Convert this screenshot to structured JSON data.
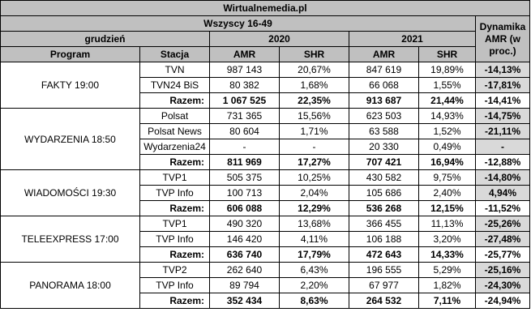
{
  "header": {
    "site": "Wirtualnemedia.pl",
    "group": "Wszyscy 16-49",
    "month": "grudzień",
    "year1": "2020",
    "year2": "2021",
    "dynamics": "Dynamika AMR (w proc.)",
    "col_program": "Program",
    "col_station": "Stacja",
    "col_amr": "AMR",
    "col_shr": "SHR"
  },
  "programs": [
    {
      "name": "FAKTY 19:00",
      "rows": [
        {
          "station": "TVN",
          "amr2020": "987 143",
          "shr2020": "20,67%",
          "amr2021": "847 619",
          "shr2021": "19,89%",
          "dyn": "-14,13%"
        },
        {
          "station": "TVN24 BiS",
          "amr2020": "80 382",
          "shr2020": "1,68%",
          "amr2021": "66 068",
          "shr2021": "1,55%",
          "dyn": "-17,81%"
        }
      ],
      "total": {
        "label": "Razem:",
        "amr2020": "1 067 525",
        "shr2020": "22,35%",
        "amr2021": "913 687",
        "shr2021": "21,44%",
        "dyn": "-14,41%"
      }
    },
    {
      "name": "WYDARZENIA 18:50",
      "rows": [
        {
          "station": "Polsat",
          "amr2020": "731 365",
          "shr2020": "15,56%",
          "amr2021": "623 503",
          "shr2021": "14,93%",
          "dyn": "-14,75%"
        },
        {
          "station": "Polsat News",
          "amr2020": "80 604",
          "shr2020": "1,71%",
          "amr2021": "63 588",
          "shr2021": "1,52%",
          "dyn": "-21,11%"
        },
        {
          "station": "Wydarzenia24",
          "amr2020": "-",
          "shr2020": "-",
          "amr2021": "20 330",
          "shr2021": "0,49%",
          "dyn": "-"
        }
      ],
      "total": {
        "label": "Razem:",
        "amr2020": "811 969",
        "shr2020": "17,27%",
        "amr2021": "707 421",
        "shr2021": "16,94%",
        "dyn": "-12,88%"
      }
    },
    {
      "name": "WIADOMOŚCI 19:30",
      "rows": [
        {
          "station": "TVP1",
          "amr2020": "505 375",
          "shr2020": "10,25%",
          "amr2021": "430 582",
          "shr2021": "9,75%",
          "dyn": "-14,80%"
        },
        {
          "station": "TVP Info",
          "amr2020": "100 713",
          "shr2020": "2,04%",
          "amr2021": "105 686",
          "shr2021": "2,40%",
          "dyn": "4,94%"
        }
      ],
      "total": {
        "label": "Razem:",
        "amr2020": "606 088",
        "shr2020": "12,29%",
        "amr2021": "536 268",
        "shr2021": "12,15%",
        "dyn": "-11,52%"
      }
    },
    {
      "name": "TELEEXPRESS 17:00",
      "rows": [
        {
          "station": "TVP1",
          "amr2020": "490 320",
          "shr2020": "13,68%",
          "amr2021": "366 455",
          "shr2021": "11,13%",
          "dyn": "-25,26%"
        },
        {
          "station": "TVP Info",
          "amr2020": "146 420",
          "shr2020": "4,11%",
          "amr2021": "106 188",
          "shr2021": "3,20%",
          "dyn": "-27,48%"
        }
      ],
      "total": {
        "label": "Razem:",
        "amr2020": "636 740",
        "shr2020": "17,79%",
        "amr2021": "472 643",
        "shr2021": "14,33%",
        "dyn": "-25,77%"
      }
    },
    {
      "name": "PANORAMA 18:00",
      "rows": [
        {
          "station": "TVP2",
          "amr2020": "262 640",
          "shr2020": "6,43%",
          "amr2021": "196 555",
          "shr2021": "5,29%",
          "dyn": "-25,16%"
        },
        {
          "station": "TVP Info",
          "amr2020": "89 794",
          "shr2020": "2,20%",
          "amr2021": "67 977",
          "shr2021": "1,82%",
          "dyn": "-24,30%"
        }
      ],
      "total": {
        "label": "Razem:",
        "amr2020": "352 434",
        "shr2020": "8,63%",
        "amr2021": "264 532",
        "shr2021": "7,11%",
        "dyn": "-24,94%"
      }
    }
  ]
}
